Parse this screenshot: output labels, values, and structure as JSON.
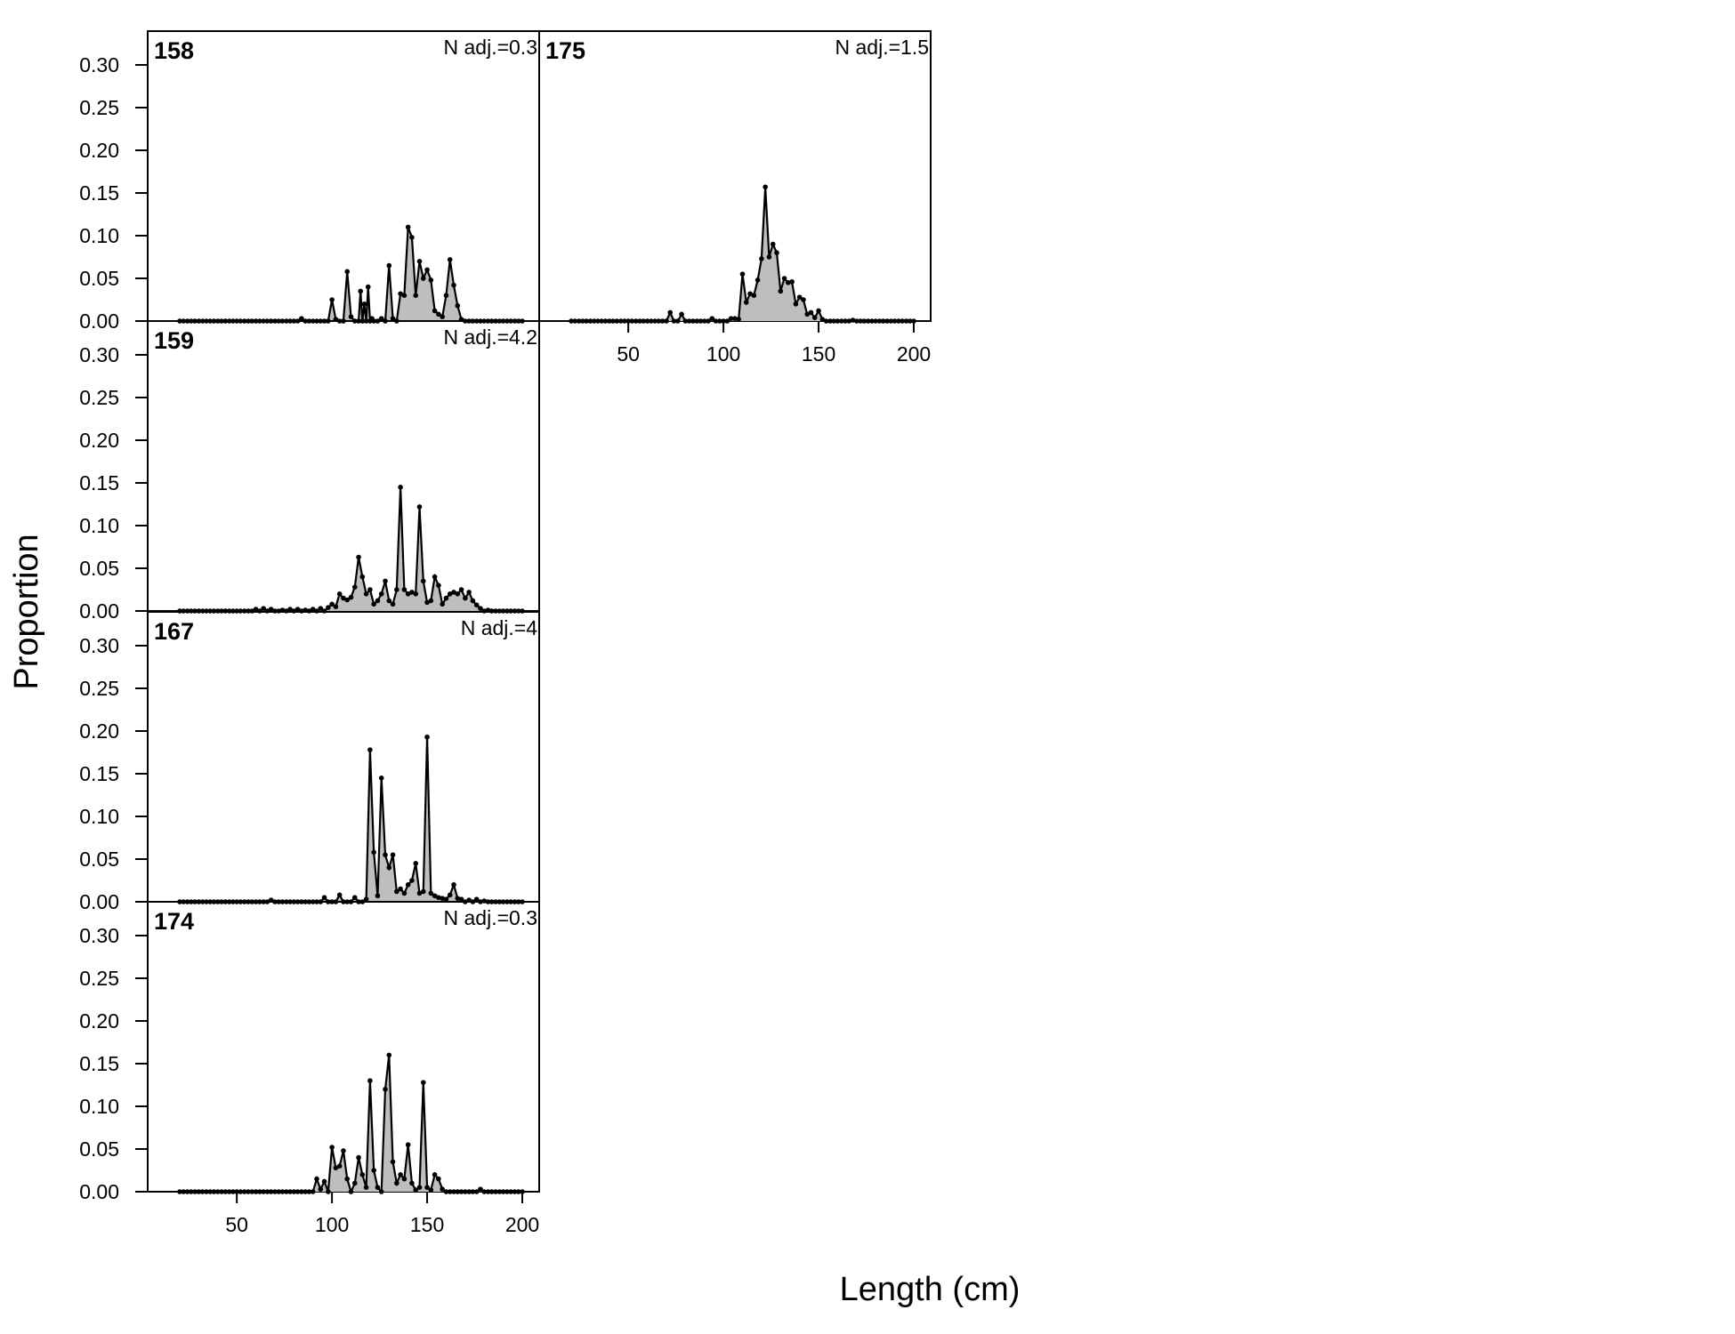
{
  "chart_data": {
    "type": "area",
    "xlabel": "Length (cm)",
    "ylabel": "Proportion",
    "xlim": [
      20,
      200
    ],
    "ylim": [
      0,
      0.34
    ],
    "xticks": [
      50,
      100,
      150,
      200
    ],
    "yticks": [
      "0.00",
      "0.05",
      "0.10",
      "0.15",
      "0.20",
      "0.25",
      "0.30"
    ],
    "fill_color": "#bebebe",
    "line_color": "#000000",
    "panels": [
      {
        "id": "158",
        "n_adj": "N adj.=0.3",
        "col": 0,
        "row": 0,
        "peaks": [
          [
            84,
            0.003
          ],
          [
            100,
            0.025
          ],
          [
            102,
            0.002
          ],
          [
            108,
            0.058
          ],
          [
            110,
            0.005
          ],
          [
            115,
            0.035
          ],
          [
            117,
            0.02
          ],
          [
            119,
            0.04
          ],
          [
            121,
            0.003
          ],
          [
            126,
            0.003
          ],
          [
            130,
            0.065
          ],
          [
            132,
            0.003
          ],
          [
            136,
            0.032
          ],
          [
            138,
            0.03
          ],
          [
            140,
            0.11
          ],
          [
            142,
            0.098
          ],
          [
            144,
            0.03
          ],
          [
            146,
            0.07
          ],
          [
            148,
            0.05
          ],
          [
            150,
            0.06
          ],
          [
            152,
            0.048
          ],
          [
            154,
            0.012
          ],
          [
            156,
            0.008
          ],
          [
            158,
            0.005
          ],
          [
            160,
            0.03
          ],
          [
            162,
            0.072
          ],
          [
            164,
            0.042
          ],
          [
            166,
            0.018
          ],
          [
            168,
            0.002
          ]
        ]
      },
      {
        "id": "175",
        "n_adj": "N adj.=1.5",
        "col": 1,
        "row": 0,
        "peaks": [
          [
            72,
            0.01
          ],
          [
            78,
            0.008
          ],
          [
            94,
            0.003
          ],
          [
            104,
            0.003
          ],
          [
            106,
            0.003
          ],
          [
            108,
            0.002
          ],
          [
            110,
            0.055
          ],
          [
            112,
            0.022
          ],
          [
            114,
            0.032
          ],
          [
            116,
            0.03
          ],
          [
            118,
            0.048
          ],
          [
            120,
            0.073
          ],
          [
            122,
            0.157
          ],
          [
            124,
            0.075
          ],
          [
            126,
            0.09
          ],
          [
            128,
            0.08
          ],
          [
            130,
            0.035
          ],
          [
            132,
            0.05
          ],
          [
            134,
            0.045
          ],
          [
            136,
            0.046
          ],
          [
            138,
            0.02
          ],
          [
            140,
            0.028
          ],
          [
            142,
            0.025
          ],
          [
            144,
            0.008
          ],
          [
            146,
            0.01
          ],
          [
            148,
            0.004
          ],
          [
            150,
            0.012
          ],
          [
            152,
            0.002
          ],
          [
            168,
            0.001
          ]
        ]
      },
      {
        "id": "159",
        "n_adj": "N adj.=4.2",
        "col": 0,
        "row": 1,
        "peaks": [
          [
            60,
            0.002
          ],
          [
            64,
            0.003
          ],
          [
            68,
            0.002
          ],
          [
            74,
            0.001
          ],
          [
            78,
            0.002
          ],
          [
            82,
            0.002
          ],
          [
            86,
            0.001
          ],
          [
            90,
            0.002
          ],
          [
            94,
            0.003
          ],
          [
            98,
            0.004
          ],
          [
            100,
            0.008
          ],
          [
            102,
            0.005
          ],
          [
            104,
            0.02
          ],
          [
            106,
            0.015
          ],
          [
            108,
            0.013
          ],
          [
            110,
            0.016
          ],
          [
            112,
            0.028
          ],
          [
            114,
            0.063
          ],
          [
            116,
            0.04
          ],
          [
            118,
            0.02
          ],
          [
            120,
            0.025
          ],
          [
            122,
            0.008
          ],
          [
            124,
            0.012
          ],
          [
            126,
            0.02
          ],
          [
            128,
            0.035
          ],
          [
            130,
            0.012
          ],
          [
            132,
            0.008
          ],
          [
            134,
            0.025
          ],
          [
            136,
            0.145
          ],
          [
            138,
            0.025
          ],
          [
            140,
            0.02
          ],
          [
            142,
            0.022
          ],
          [
            144,
            0.02
          ],
          [
            146,
            0.122
          ],
          [
            148,
            0.035
          ],
          [
            150,
            0.01
          ],
          [
            152,
            0.012
          ],
          [
            154,
            0.04
          ],
          [
            156,
            0.03
          ],
          [
            158,
            0.008
          ],
          [
            160,
            0.015
          ],
          [
            162,
            0.02
          ],
          [
            164,
            0.022
          ],
          [
            166,
            0.02
          ],
          [
            168,
            0.025
          ],
          [
            170,
            0.015
          ],
          [
            172,
            0.022
          ],
          [
            174,
            0.012
          ],
          [
            176,
            0.007
          ],
          [
            178,
            0.003
          ],
          [
            182,
            0.001
          ]
        ]
      },
      {
        "id": "167",
        "n_adj": "N adj.=4",
        "col": 0,
        "row": 2,
        "peaks": [
          [
            68,
            0.002
          ],
          [
            96,
            0.005
          ],
          [
            104,
            0.008
          ],
          [
            112,
            0.005
          ],
          [
            118,
            0.003
          ],
          [
            120,
            0.178
          ],
          [
            122,
            0.058
          ],
          [
            124,
            0.007
          ],
          [
            126,
            0.145
          ],
          [
            128,
            0.055
          ],
          [
            130,
            0.04
          ],
          [
            132,
            0.055
          ],
          [
            134,
            0.012
          ],
          [
            136,
            0.015
          ],
          [
            138,
            0.01
          ],
          [
            140,
            0.02
          ],
          [
            142,
            0.025
          ],
          [
            144,
            0.045
          ],
          [
            146,
            0.01
          ],
          [
            148,
            0.012
          ],
          [
            150,
            0.193
          ],
          [
            152,
            0.01
          ],
          [
            154,
            0.007
          ],
          [
            156,
            0.005
          ],
          [
            158,
            0.004
          ],
          [
            160,
            0.003
          ],
          [
            162,
            0.008
          ],
          [
            164,
            0.02
          ],
          [
            166,
            0.004
          ],
          [
            168,
            0.003
          ],
          [
            172,
            0.002
          ],
          [
            176,
            0.003
          ],
          [
            180,
            0.001
          ]
        ]
      },
      {
        "id": "174",
        "n_adj": "N adj.=0.3",
        "col": 0,
        "row": 3,
        "peaks": [
          [
            92,
            0.015
          ],
          [
            94,
            0.003
          ],
          [
            96,
            0.012
          ],
          [
            100,
            0.052
          ],
          [
            102,
            0.028
          ],
          [
            104,
            0.03
          ],
          [
            106,
            0.048
          ],
          [
            108,
            0.015
          ],
          [
            112,
            0.01
          ],
          [
            114,
            0.04
          ],
          [
            116,
            0.02
          ],
          [
            118,
            0.005
          ],
          [
            120,
            0.13
          ],
          [
            122,
            0.025
          ],
          [
            124,
            0.005
          ],
          [
            128,
            0.12
          ],
          [
            130,
            0.16
          ],
          [
            132,
            0.035
          ],
          [
            134,
            0.01
          ],
          [
            136,
            0.02
          ],
          [
            138,
            0.015
          ],
          [
            140,
            0.055
          ],
          [
            142,
            0.01
          ],
          [
            144,
            0.002
          ],
          [
            146,
            0.005
          ],
          [
            148,
            0.128
          ],
          [
            150,
            0.005
          ],
          [
            152,
            0.002
          ],
          [
            154,
            0.02
          ],
          [
            156,
            0.015
          ],
          [
            158,
            0.003
          ],
          [
            178,
            0.003
          ]
        ]
      }
    ]
  }
}
